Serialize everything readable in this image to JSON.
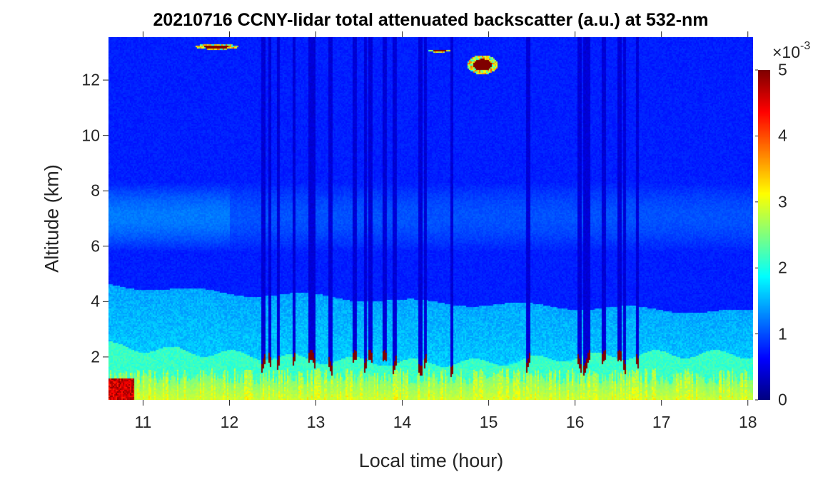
{
  "chart_data": {
    "type": "heatmap",
    "title": "20210716 CCNY-lidar total attenuated backscatter (a.u.) at 532-nm",
    "xlabel": "Local time (hour)",
    "ylabel": "Altitude (km)",
    "xlim": [
      10.6,
      18.06
    ],
    "ylim": [
      0.45,
      13.55
    ],
    "xticks": [
      "11",
      "12",
      "13",
      "14",
      "15",
      "16",
      "17",
      "18"
    ],
    "yticks": [
      "2",
      "4",
      "6",
      "8",
      "10",
      "12"
    ],
    "colormap": "jet",
    "clim": [
      0,
      5
    ],
    "colorbar": {
      "ticks": [
        "0",
        "1",
        "2",
        "3",
        "4",
        "5"
      ],
      "multiplier_base": "×10",
      "multiplier_exp": "-3"
    },
    "cloud_times_hour": [
      12.4,
      12.47,
      12.57,
      12.75,
      12.94,
      12.98,
      13.17,
      13.45,
      13.58,
      13.64,
      13.8,
      13.92,
      14.21,
      14.27,
      14.57,
      15.45,
      16.05,
      16.12,
      16.16,
      16.33,
      16.51,
      16.57,
      16.72
    ],
    "cloud_base_km": 1.8,
    "boundary_layer_top_km": {
      "x": [
        10.6,
        11,
        12,
        13,
        14,
        15,
        16,
        17,
        18.06
      ],
      "y": [
        2.4,
        2.3,
        2.1,
        1.9,
        1.8,
        1.8,
        2.0,
        2.1,
        2.1
      ]
    },
    "aerosol_layer_top_km": {
      "x": [
        10.6,
        12,
        13,
        14,
        16,
        18.06
      ],
      "y": [
        4.6,
        4.3,
        4.2,
        4.0,
        3.8,
        3.6
      ]
    },
    "residual_layer_km": [
      5.8,
      8.3
    ],
    "cirrus": [
      {
        "x": [
          11.6,
          12.1
        ],
        "y": [
          13.1,
          13.3
        ]
      },
      {
        "x": [
          14.75,
          15.1
        ],
        "y": [
          12.2,
          12.9
        ]
      },
      {
        "x": [
          14.3,
          14.55
        ],
        "y": [
          13.0,
          13.1
        ]
      }
    ]
  }
}
